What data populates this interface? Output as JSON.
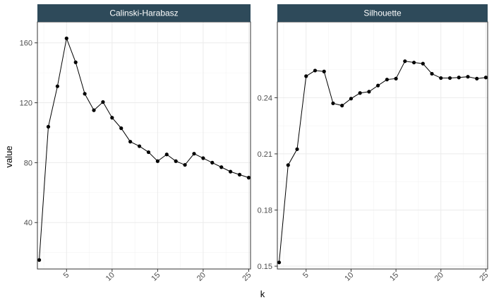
{
  "chart_data": {
    "type": "line",
    "xlabel": "k",
    "ylabel": "value",
    "x_ticks": [
      5,
      10,
      15,
      20,
      25
    ],
    "xlim": [
      1.8,
      25.2
    ],
    "panels": [
      {
        "title": "Calinski-Harabasz",
        "ylim": [
          9,
          174
        ],
        "y_ticks": [
          40,
          80,
          120,
          160
        ],
        "y_tick_labels": [
          "40",
          "80",
          "120",
          "160"
        ],
        "x": [
          2,
          3,
          4,
          5,
          6,
          7,
          8,
          9,
          10,
          11,
          12,
          13,
          14,
          15,
          16,
          17,
          18,
          19,
          20,
          21,
          22,
          23,
          24,
          25
        ],
        "y": [
          15,
          104,
          131,
          163,
          147,
          126,
          115,
          120.5,
          110,
          103,
          94,
          91,
          87,
          81,
          85.5,
          81,
          78.5,
          86,
          83,
          80,
          77,
          74,
          72,
          70
        ]
      },
      {
        "title": "Silhouette",
        "ylim": [
          0.1485,
          0.2805
        ],
        "y_ticks": [
          0.15,
          0.18,
          0.21,
          0.24
        ],
        "y_tick_labels": [
          "0.15",
          "0.18",
          "0.21",
          "0.24"
        ],
        "x": [
          2,
          3,
          4,
          5,
          6,
          7,
          8,
          9,
          10,
          11,
          12,
          13,
          14,
          15,
          16,
          17,
          18,
          19,
          20,
          21,
          22,
          23,
          24,
          25
        ],
        "y": [
          0.152,
          0.204,
          0.2125,
          0.2515,
          0.2545,
          0.254,
          0.237,
          0.2358,
          0.2395,
          0.2425,
          0.2432,
          0.2465,
          0.2497,
          0.2502,
          0.2595,
          0.2588,
          0.2582,
          0.2528,
          0.2505,
          0.2505,
          0.2508,
          0.2512,
          0.2502,
          0.2508
        ]
      }
    ]
  }
}
